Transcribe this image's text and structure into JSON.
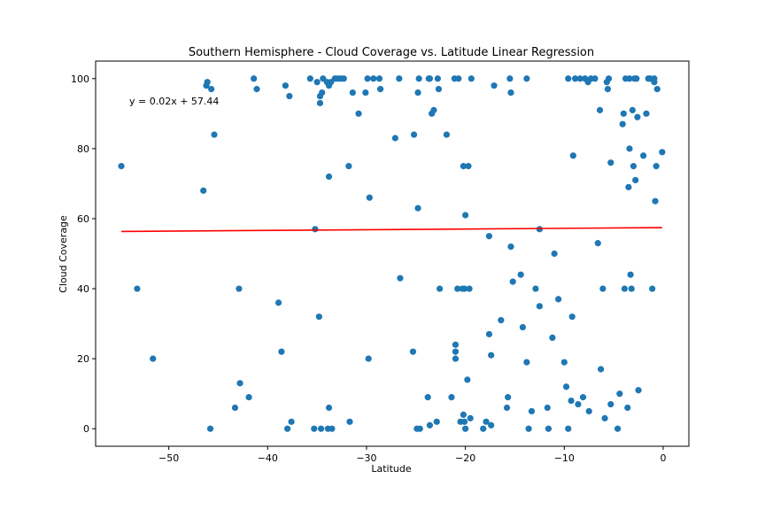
{
  "chart_data": {
    "type": "scatter",
    "title": "Southern Hemisphere - Cloud Coverage vs. Latitude Linear Regression",
    "xlabel": "Latitude",
    "ylabel": "Cloud Coverage",
    "xlim": [
      -57.4,
      2.6
    ],
    "ylim": [
      -5,
      105
    ],
    "xticks": [
      -50,
      -40,
      -30,
      -20,
      -10,
      0
    ],
    "xtick_labels": [
      "−50",
      "−40",
      "−30",
      "−20",
      "−10",
      "0"
    ],
    "yticks": [
      0,
      20,
      40,
      60,
      80,
      100
    ],
    "grid": false,
    "point_color": "#1f77b4",
    "line_color": "#ff0000",
    "regression": {
      "slope": 0.02,
      "intercept": 57.44,
      "x_range": [
        -54.8,
        -0.1
      ],
      "equation": "y = 0.02x + 57.44"
    },
    "points": [
      [
        -54.8,
        75
      ],
      [
        -53.2,
        40
      ],
      [
        -51.6,
        20
      ],
      [
        -46.5,
        68
      ],
      [
        -46.2,
        98
      ],
      [
        -46.1,
        99
      ],
      [
        -45.8,
        0
      ],
      [
        -45.7,
        97
      ],
      [
        -45.4,
        84
      ],
      [
        -43.3,
        6
      ],
      [
        -42.9,
        40
      ],
      [
        -42.8,
        13
      ],
      [
        -41.9,
        9
      ],
      [
        -41.4,
        100
      ],
      [
        -41.1,
        97
      ],
      [
        -38.9,
        36
      ],
      [
        -38.6,
        22
      ],
      [
        -38.2,
        98
      ],
      [
        -38.0,
        0
      ],
      [
        -37.8,
        95
      ],
      [
        -37.6,
        2
      ],
      [
        -35.7,
        100
      ],
      [
        -35.3,
        0
      ],
      [
        -35.2,
        57
      ],
      [
        -35.0,
        99
      ],
      [
        -34.8,
        32
      ],
      [
        -34.7,
        95
      ],
      [
        -34.7,
        93
      ],
      [
        -34.6,
        0
      ],
      [
        -34.5,
        96
      ],
      [
        -34.4,
        100
      ],
      [
        -34.0,
        99
      ],
      [
        -33.9,
        0
      ],
      [
        -33.8,
        72
      ],
      [
        -33.8,
        98
      ],
      [
        -33.8,
        6
      ],
      [
        -33.6,
        99
      ],
      [
        -33.5,
        0
      ],
      [
        -33.2,
        100
      ],
      [
        -32.9,
        100
      ],
      [
        -32.6,
        100
      ],
      [
        -32.3,
        100
      ],
      [
        -31.8,
        75
      ],
      [
        -31.7,
        2
      ],
      [
        -31.4,
        96
      ],
      [
        -30.8,
        90
      ],
      [
        -30.1,
        96
      ],
      [
        -29.9,
        100
      ],
      [
        -29.8,
        20
      ],
      [
        -29.7,
        66
      ],
      [
        -29.3,
        100
      ],
      [
        -28.7,
        100
      ],
      [
        -28.6,
        97
      ],
      [
        -27.1,
        83
      ],
      [
        -26.7,
        100
      ],
      [
        -26.6,
        43
      ],
      [
        -25.3,
        22
      ],
      [
        -25.2,
        84
      ],
      [
        -24.8,
        63
      ],
      [
        -24.8,
        96
      ],
      [
        -24.7,
        100
      ],
      [
        -24.9,
        0
      ],
      [
        -24.6,
        0
      ],
      [
        -23.8,
        9
      ],
      [
        -23.7,
        100
      ],
      [
        -23.6,
        1
      ],
      [
        -23.6,
        100
      ],
      [
        -23.4,
        90
      ],
      [
        -23.2,
        91
      ],
      [
        -22.9,
        2
      ],
      [
        -22.8,
        100
      ],
      [
        -22.7,
        97
      ],
      [
        -22.6,
        40
      ],
      [
        -21.9,
        84
      ],
      [
        -21.4,
        9
      ],
      [
        -21.1,
        100
      ],
      [
        -21.0,
        24
      ],
      [
        -21.0,
        22
      ],
      [
        -21.0,
        20
      ],
      [
        -20.8,
        40
      ],
      [
        -20.7,
        100
      ],
      [
        -20.5,
        2
      ],
      [
        -20.3,
        40
      ],
      [
        -20.2,
        75
      ],
      [
        -20.2,
        4
      ],
      [
        -20.1,
        2
      ],
      [
        -20.1,
        40
      ],
      [
        -20.0,
        61
      ],
      [
        -20.0,
        0
      ],
      [
        -19.8,
        14
      ],
      [
        -19.7,
        75
      ],
      [
        -19.6,
        40
      ],
      [
        -19.5,
        3
      ],
      [
        -19.4,
        100
      ],
      [
        -18.2,
        0
      ],
      [
        -17.9,
        2
      ],
      [
        -17.6,
        55
      ],
      [
        -17.6,
        27
      ],
      [
        -17.4,
        21
      ],
      [
        -17.4,
        1
      ],
      [
        -17.1,
        98
      ],
      [
        -16.4,
        31
      ],
      [
        -15.8,
        6
      ],
      [
        -15.7,
        9
      ],
      [
        -15.5,
        100
      ],
      [
        -15.4,
        52
      ],
      [
        -15.4,
        96
      ],
      [
        -15.2,
        42
      ],
      [
        -14.4,
        44
      ],
      [
        -14.2,
        29
      ],
      [
        -13.8,
        19
      ],
      [
        -13.8,
        100
      ],
      [
        -13.6,
        0
      ],
      [
        -13.3,
        5
      ],
      [
        -12.9,
        40
      ],
      [
        -12.5,
        35
      ],
      [
        -12.5,
        57
      ],
      [
        -11.7,
        6
      ],
      [
        -11.6,
        0
      ],
      [
        -11.2,
        26
      ],
      [
        -11.0,
        50
      ],
      [
        -10.6,
        37
      ],
      [
        -10.0,
        19
      ],
      [
        -9.8,
        12
      ],
      [
        -9.6,
        100
      ],
      [
        -9.6,
        0
      ],
      [
        -9.3,
        8
      ],
      [
        -9.2,
        32
      ],
      [
        -9.1,
        78
      ],
      [
        -8.9,
        100
      ],
      [
        -8.6,
        7
      ],
      [
        -8.4,
        100
      ],
      [
        -8.1,
        9
      ],
      [
        -7.9,
        100
      ],
      [
        -7.6,
        99
      ],
      [
        -7.5,
        5
      ],
      [
        -7.3,
        100
      ],
      [
        -6.9,
        100
      ],
      [
        -6.6,
        53
      ],
      [
        -6.4,
        91
      ],
      [
        -6.3,
        17
      ],
      [
        -6.1,
        40
      ],
      [
        -5.9,
        3
      ],
      [
        -5.7,
        99
      ],
      [
        -5.6,
        97
      ],
      [
        -5.5,
        100
      ],
      [
        -5.3,
        7
      ],
      [
        -5.3,
        76
      ],
      [
        -4.6,
        0
      ],
      [
        -4.4,
        10
      ],
      [
        -4.1,
        87
      ],
      [
        -4.0,
        90
      ],
      [
        -3.9,
        40
      ],
      [
        -3.8,
        100
      ],
      [
        -3.6,
        6
      ],
      [
        -3.5,
        69
      ],
      [
        -3.4,
        100
      ],
      [
        -3.4,
        80
      ],
      [
        -3.3,
        44
      ],
      [
        -3.2,
        40
      ],
      [
        -3.1,
        91
      ],
      [
        -3.0,
        75
      ],
      [
        -2.9,
        100
      ],
      [
        -2.8,
        71
      ],
      [
        -2.7,
        100
      ],
      [
        -2.6,
        89
      ],
      [
        -2.5,
        11
      ],
      [
        -2.0,
        78
      ],
      [
        -1.7,
        90
      ],
      [
        -1.5,
        100
      ],
      [
        -1.3,
        100
      ],
      [
        -1.1,
        40
      ],
      [
        -0.9,
        100
      ],
      [
        -0.9,
        99
      ],
      [
        -0.8,
        65
      ],
      [
        -0.7,
        75
      ],
      [
        -0.6,
        97
      ],
      [
        -0.1,
        79
      ]
    ]
  }
}
